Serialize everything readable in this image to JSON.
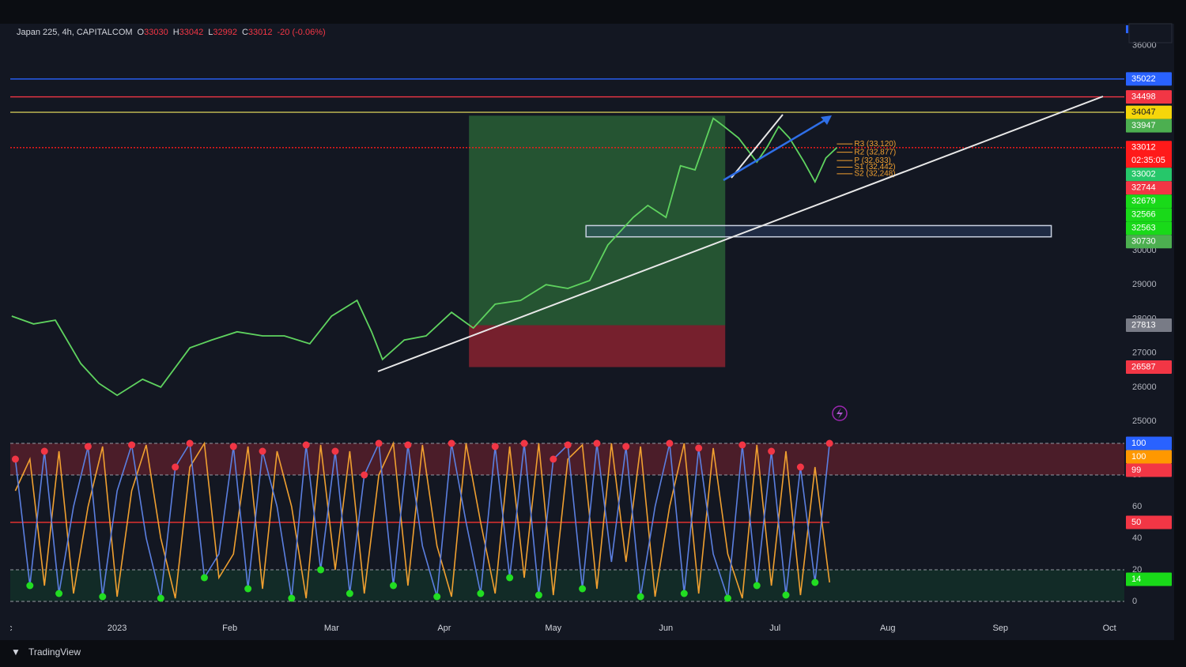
{
  "header": {
    "symbol": "Japan 225, 4h, CAPITALCOM",
    "ohlc": [
      {
        "label": "O",
        "value": "33030"
      },
      {
        "label": "H",
        "value": "33042"
      },
      {
        "label": "L",
        "value": "32992"
      },
      {
        "label": "C",
        "value": "33012"
      }
    ],
    "change": "-20 (-0.06%)"
  },
  "chart_data": [
    {
      "type": "line",
      "color": "#5fd35f",
      "x": [
        -29,
        -23,
        -17,
        -10,
        -5,
        0,
        7,
        12,
        20,
        26,
        33,
        40,
        46,
        53,
        59,
        66,
        70,
        73,
        79,
        85,
        92,
        98,
        104,
        111,
        118,
        124,
        130,
        135,
        142,
        146,
        151,
        155,
        159,
        164,
        167,
        171,
        176,
        179,
        182,
        185,
        189,
        192,
        195,
        198
      ],
      "values": [
        28080,
        27850,
        27960,
        26690,
        26110,
        25760,
        26230,
        26000,
        27150,
        27380,
        27620,
        27500,
        27500,
        27270,
        28080,
        28540,
        27620,
        26810,
        27380,
        27500,
        28190,
        27730,
        28430,
        28540,
        29000,
        28890,
        29120,
        30160,
        30970,
        31320,
        30970,
        32480,
        32360,
        33870,
        33630,
        33290,
        32590,
        33060,
        33630,
        33290,
        32590,
        32010,
        32710,
        33012
      ],
      "xlim": [
        -29.4,
        277.1
      ],
      "ylim": [
        24840,
        36640
      ],
      "yticks": [
        36000,
        30000,
        29000,
        28000,
        27000,
        26000,
        25000
      ],
      "tags": [
        {
          "value": 35022,
          "color": "#2962ff",
          "line": "solid"
        },
        {
          "value": 34498,
          "color": "#f23645",
          "line": "solid"
        },
        {
          "value": 34047,
          "color": "#f5d60a",
          "line": "solid"
        },
        {
          "value": 33947,
          "color": "#4caf50"
        },
        {
          "value": 33012,
          "color": "#ff1a1a",
          "line": "dotted",
          "countdown": "02:35:05"
        },
        {
          "value": 33002,
          "color": "#26c76a"
        },
        {
          "value": 32744,
          "color": "#f23645"
        },
        {
          "value": 32679,
          "color": "#19d919"
        },
        {
          "value": 32566,
          "color": "#19d919"
        },
        {
          "value": 32563,
          "color": "#19d919"
        },
        {
          "value": 30730,
          "color": "#4caf50"
        },
        {
          "value": 27813,
          "color": "#787b86"
        },
        {
          "value": 26587,
          "color": "#f23645"
        }
      ],
      "position": {
        "x": [
          96.8,
          167.3
        ],
        "target": 33947,
        "entry": 27813,
        "stop": 26587
      },
      "zone": {
        "x": [
          129,
          257
        ],
        "y": [
          30400,
          30730
        ]
      },
      "pivots": [
        {
          "label": "R3 (33,120)",
          "value": 33120
        },
        {
          "label": "R2 (32,877)",
          "value": 32877
        },
        {
          "label": "P (32,633)",
          "value": 32633
        },
        {
          "label": "S1 (32,442)",
          "value": 32442
        },
        {
          "label": "S2 (32,248)",
          "value": 32248
        }
      ]
    },
    {
      "type": "oscillator",
      "x": [
        -28,
        -24,
        -20,
        -16,
        -12,
        -8,
        -4,
        0,
        4,
        8,
        12,
        16,
        20,
        24,
        28,
        32,
        36,
        40,
        44,
        48,
        52,
        56,
        60,
        64,
        68,
        72,
        76,
        80,
        84,
        88,
        92,
        96,
        100,
        104,
        108,
        112,
        116,
        120,
        124,
        128,
        132,
        136,
        140,
        144,
        148,
        152,
        156,
        160,
        164,
        168,
        172,
        176,
        180,
        184,
        188,
        192,
        196
      ],
      "series": [
        {
          "color": "#5b7fe0",
          "values": [
            90,
            10,
            95,
            5,
            60,
            98,
            3,
            70,
            99,
            40,
            2,
            85,
            100,
            15,
            30,
            98,
            8,
            95,
            60,
            2,
            99,
            20,
            95,
            5,
            80,
            100,
            10,
            99,
            35,
            3,
            100,
            50,
            5,
            98,
            15,
            100,
            4,
            90,
            99,
            8,
            100,
            25,
            98,
            3,
            60,
            100,
            5,
            97,
            30,
            2,
            99,
            10,
            95,
            4,
            85,
            12,
            100
          ]
        },
        {
          "color": "#f0a030",
          "values": [
            70,
            90,
            10,
            95,
            5,
            60,
            98,
            3,
            70,
            99,
            40,
            2,
            85,
            100,
            15,
            30,
            98,
            8,
            95,
            60,
            2,
            99,
            20,
            95,
            5,
            80,
            100,
            10,
            99,
            35,
            3,
            100,
            50,
            5,
            98,
            15,
            100,
            4,
            90,
            99,
            8,
            100,
            25,
            98,
            3,
            60,
            100,
            5,
            97,
            30,
            2,
            99,
            10,
            95,
            4,
            85,
            12
          ]
        }
      ],
      "xlim": [
        -29.4,
        277.1
      ],
      "ylim": [
        -7,
        110.5
      ],
      "yticks": [
        80,
        60,
        40,
        20,
        0
      ],
      "dashed_levels": [
        100,
        80,
        20,
        0
      ],
      "midline": 50,
      "zones": [
        {
          "from": 80,
          "to": 100,
          "color": "rgba(180,40,55,0.35)"
        },
        {
          "from": 0,
          "to": 20,
          "color": "rgba(20,120,60,0.22)"
        }
      ],
      "dot_colors": {
        "high": "#f23645",
        "low": "#22dd22"
      },
      "tags": [
        {
          "value": 100,
          "color": "#2962ff"
        },
        {
          "value": 100,
          "color": "#ff9800"
        },
        {
          "value": 99,
          "color": "#f23645"
        },
        {
          "value": 50,
          "color": "#f23645"
        },
        {
          "value": 14,
          "color": "#19d919"
        }
      ],
      "xticks": [
        {
          "value": -31,
          "label": "Dec"
        },
        {
          "value": 0,
          "label": "2023"
        },
        {
          "value": 31,
          "label": "Feb"
        },
        {
          "value": 59,
          "label": "Mar"
        },
        {
          "value": 90,
          "label": "Apr"
        },
        {
          "value": 120,
          "label": "May"
        },
        {
          "value": 151,
          "label": "Jun"
        },
        {
          "value": 181,
          "label": "Jul"
        },
        {
          "value": 212,
          "label": "Aug"
        },
        {
          "value": 243,
          "label": "Sep"
        },
        {
          "value": 273,
          "label": "Oct"
        }
      ]
    }
  ],
  "branding": "TradingView"
}
